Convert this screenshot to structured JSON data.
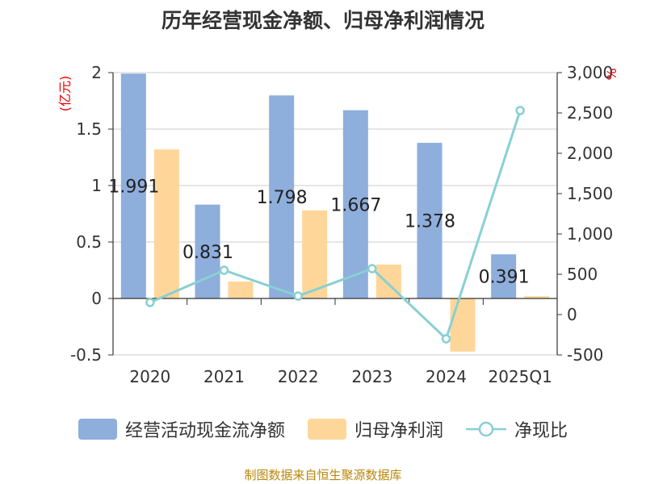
{
  "chart_data": {
    "type": "bar",
    "title": "历年经营现金净额、归母净利润情况",
    "categories": [
      "2020",
      "2021",
      "2022",
      "2023",
      "2024",
      "2025Q1"
    ],
    "series": [
      {
        "name": "经营活动现金流净额",
        "type": "bar",
        "axis": "left",
        "color": "#8eaedc",
        "values": [
          1.991,
          0.831,
          1.798,
          1.667,
          1.378,
          0.391
        ],
        "data_labels": [
          "1.991",
          "0.831",
          "1.798",
          "1.667",
          "1.378",
          "0.391"
        ]
      },
      {
        "name": "归母净利润",
        "type": "bar",
        "axis": "left",
        "color": "#ffd699",
        "values": [
          1.32,
          0.15,
          0.78,
          0.3,
          -0.47,
          0.02
        ]
      },
      {
        "name": "净现比",
        "type": "line",
        "axis": "right",
        "color": "#88d0d4",
        "values": [
          150,
          550,
          230,
          570,
          -300,
          2530
        ]
      }
    ],
    "y_left": {
      "unit": "(亿元)",
      "ylim": [
        -0.5,
        2
      ],
      "ticks": [
        {
          "value": 2,
          "label": "2"
        },
        {
          "value": 1.5,
          "label": "1.5"
        },
        {
          "value": 1,
          "label": "1"
        },
        {
          "value": 0.5,
          "label": "0.5"
        },
        {
          "value": 0,
          "label": "0"
        },
        {
          "value": -0.5,
          "label": "-0.5"
        }
      ]
    },
    "y_right": {
      "unit": "%",
      "ylim": [
        -500,
        3000
      ],
      "ticks": [
        {
          "value": 3000,
          "label": "3,000"
        },
        {
          "value": 2500,
          "label": "2,500"
        },
        {
          "value": 2000,
          "label": "2,000"
        },
        {
          "value": 1500,
          "label": "1,500"
        },
        {
          "value": 1000,
          "label": "1,000"
        },
        {
          "value": 500,
          "label": "500"
        },
        {
          "value": 0,
          "label": "0"
        },
        {
          "value": -500,
          "label": "-500"
        }
      ]
    },
    "grid": true,
    "legend": "bottom",
    "unit_color": "#e60000"
  },
  "source": "制图数据来自恒生聚源数据库"
}
